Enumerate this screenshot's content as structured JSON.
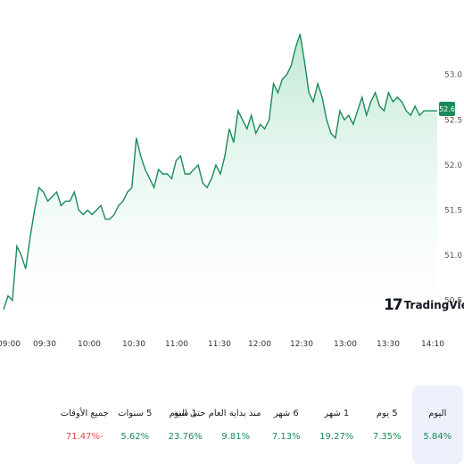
{
  "brand": {
    "name": "TradingView",
    "mark": "17"
  },
  "last_price": "52.6",
  "colors": {
    "line": "#1b8a5a",
    "fill_top": "#b8e6cf",
    "fill_bottom": "#ffffff",
    "positive": "#1b8a5a",
    "negative": "#e04a4a",
    "active_bg": "#eef1fb"
  },
  "chart_data": {
    "type": "area",
    "x_ticks": [
      "09:00",
      "09:30",
      "10:00",
      "10:30",
      "11:00",
      "11:30",
      "12:00",
      "12:30",
      "13:00",
      "13:30",
      "14:10"
    ],
    "y_ticks": [
      "50.5",
      "51.0",
      "51.5",
      "52.0",
      "52.5",
      "53.0"
    ],
    "ylim": [
      50.25,
      53.55
    ],
    "x": [
      0,
      3,
      6,
      9,
      12,
      15,
      18,
      21,
      24,
      27,
      30,
      33,
      36,
      39,
      42,
      45,
      48,
      51,
      54,
      57,
      60,
      63,
      66,
      69,
      72,
      75,
      78,
      81,
      84,
      87,
      90,
      93,
      96,
      99,
      102,
      105,
      108,
      111,
      114,
      117,
      120,
      123,
      126,
      129,
      132,
      135,
      138,
      141,
      144,
      147,
      150,
      153,
      156,
      159,
      162,
      165,
      168,
      171,
      174,
      177,
      180,
      183,
      186,
      189,
      192,
      195,
      198,
      201,
      204,
      207,
      210,
      213,
      216,
      219,
      222,
      225,
      228,
      231,
      234,
      237,
      240,
      243,
      246,
      249,
      252,
      255,
      258,
      261,
      264,
      267,
      270,
      273,
      276,
      279,
      282,
      285,
      288,
      291,
      294
    ],
    "values": [
      50.4,
      50.55,
      50.5,
      51.1,
      51.0,
      50.85,
      51.2,
      51.5,
      51.75,
      51.7,
      51.6,
      51.65,
      51.7,
      51.55,
      51.6,
      51.6,
      51.7,
      51.5,
      51.45,
      51.5,
      51.45,
      51.5,
      51.55,
      51.4,
      51.4,
      51.45,
      51.55,
      51.6,
      51.7,
      51.75,
      52.3,
      52.1,
      51.95,
      51.85,
      51.75,
      51.95,
      51.9,
      51.9,
      51.85,
      52.05,
      52.1,
      51.9,
      51.9,
      51.95,
      52.0,
      51.8,
      51.75,
      51.85,
      52.0,
      51.9,
      52.1,
      52.4,
      52.25,
      52.6,
      52.5,
      52.4,
      52.55,
      52.35,
      52.45,
      52.4,
      52.5,
      52.9,
      52.8,
      52.95,
      53.0,
      53.1,
      53.3,
      53.45,
      53.15,
      52.8,
      52.7,
      52.9,
      52.75,
      52.5,
      52.35,
      52.3,
      52.6,
      52.5,
      52.55,
      52.45,
      52.6,
      52.75,
      52.55,
      52.7,
      52.8,
      52.65,
      52.6,
      52.8,
      52.7,
      52.75,
      52.7,
      52.6,
      52.55,
      52.65,
      52.55,
      52.6,
      52.6,
      52.6,
      52.6
    ]
  },
  "performance": [
    {
      "label": "اليوم",
      "value": "5.84%",
      "sign": "positive",
      "active": true
    },
    {
      "label": "5 يوم",
      "value": "7.35%",
      "sign": "positive",
      "active": false
    },
    {
      "label": "1 شهر",
      "value": "19.27%",
      "sign": "positive",
      "active": false
    },
    {
      "label": "6 شهر",
      "value": "7.13%",
      "sign": "positive",
      "active": false
    },
    {
      "label": "منذ بداية العام حتى اليوم",
      "value": "9.81%",
      "sign": "positive",
      "active": false
    },
    {
      "label": "1 سنة",
      "value": "23.76%",
      "sign": "positive",
      "active": false
    },
    {
      "label": "5 سنوات",
      "value": "5.62%",
      "sign": "positive",
      "active": false
    },
    {
      "label": "جميع الأوقات",
      "value": "71.47%-",
      "sign": "negative",
      "active": false
    }
  ]
}
